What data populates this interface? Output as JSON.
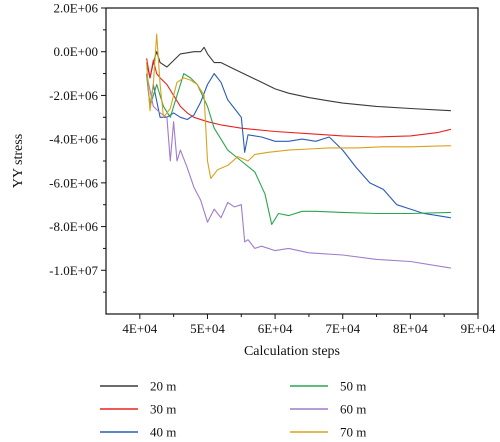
{
  "chart_data": {
    "type": "line",
    "xlabel": "Calculation steps",
    "ylabel": "YY stress",
    "xlim": [
      35000,
      90000
    ],
    "ylim": [
      -12000000,
      2000000
    ],
    "x_ticks": [
      40000,
      50000,
      60000,
      70000,
      80000,
      90000
    ],
    "x_tick_labels": [
      "4E+04",
      "5E+04",
      "6E+04",
      "7E+04",
      "8E+04",
      "9E+04"
    ],
    "y_ticks": [
      2000000,
      0,
      -2000000,
      -4000000,
      -6000000,
      -8000000,
      -10000000
    ],
    "y_tick_labels": [
      "2.0E+06",
      "0.0E+00",
      "-2.0E+06",
      "-4.0E+06",
      "-6.0E+06",
      "-8.0E+06",
      "-1.0E+07"
    ],
    "grid": false,
    "legend_position": "bottom",
    "series": [
      {
        "name": "20 m",
        "color": "#3a3a3a",
        "points": [
          [
            41000,
            -500000
          ],
          [
            41500,
            -1200000
          ],
          [
            42000,
            -500000
          ],
          [
            42500,
            0
          ],
          [
            43000,
            -500000
          ],
          [
            44000,
            -700000
          ],
          [
            45000,
            -400000
          ],
          [
            46000,
            -100000
          ],
          [
            47000,
            -50000
          ],
          [
            48000,
            0
          ],
          [
            49000,
            0
          ],
          [
            49500,
            200000
          ],
          [
            50000,
            -100000
          ],
          [
            51000,
            -500000
          ],
          [
            52000,
            -500000
          ],
          [
            54000,
            -800000
          ],
          [
            56000,
            -1100000
          ],
          [
            58000,
            -1400000
          ],
          [
            60000,
            -1700000
          ],
          [
            62000,
            -1900000
          ],
          [
            65000,
            -2100000
          ],
          [
            68000,
            -2250000
          ],
          [
            70000,
            -2350000
          ],
          [
            75000,
            -2500000
          ],
          [
            80000,
            -2600000
          ],
          [
            86000,
            -2700000
          ]
        ]
      },
      {
        "name": "30 m",
        "color": "#e8231f",
        "points": [
          [
            41000,
            -300000
          ],
          [
            41500,
            -1200000
          ],
          [
            42000,
            -400000
          ],
          [
            42500,
            -1000000
          ],
          [
            43000,
            -1200000
          ],
          [
            44000,
            -1500000
          ],
          [
            45000,
            -2000000
          ],
          [
            46000,
            -2500000
          ],
          [
            47000,
            -2800000
          ],
          [
            48000,
            -3000000
          ],
          [
            50000,
            -3200000
          ],
          [
            52000,
            -3350000
          ],
          [
            55000,
            -3500000
          ],
          [
            60000,
            -3650000
          ],
          [
            65000,
            -3750000
          ],
          [
            70000,
            -3850000
          ],
          [
            75000,
            -3900000
          ],
          [
            80000,
            -3850000
          ],
          [
            84000,
            -3700000
          ],
          [
            86000,
            -3550000
          ]
        ]
      },
      {
        "name": "40 m",
        "color": "#2a5cb8",
        "points": [
          [
            41000,
            -1000000
          ],
          [
            41500,
            -2500000
          ],
          [
            42000,
            -1500000
          ],
          [
            43000,
            -3000000
          ],
          [
            44000,
            -3000000
          ],
          [
            45000,
            -2800000
          ],
          [
            46000,
            -3000000
          ],
          [
            47000,
            -3100000
          ],
          [
            48000,
            -2900000
          ],
          [
            49000,
            -2300000
          ],
          [
            50000,
            -1500000
          ],
          [
            51000,
            -1000000
          ],
          [
            52000,
            -1400000
          ],
          [
            53000,
            -2200000
          ],
          [
            54000,
            -2600000
          ],
          [
            55000,
            -3000000
          ],
          [
            55500,
            -4600000
          ],
          [
            56000,
            -3800000
          ],
          [
            58000,
            -3900000
          ],
          [
            60000,
            -4100000
          ],
          [
            62000,
            -4100000
          ],
          [
            64000,
            -4000000
          ],
          [
            66000,
            -4100000
          ],
          [
            68000,
            -3900000
          ],
          [
            70000,
            -4500000
          ],
          [
            72000,
            -5300000
          ],
          [
            74000,
            -6000000
          ],
          [
            76000,
            -6300000
          ],
          [
            78000,
            -7000000
          ],
          [
            80000,
            -7200000
          ],
          [
            82000,
            -7400000
          ],
          [
            84000,
            -7500000
          ],
          [
            86000,
            -7600000
          ]
        ]
      },
      {
        "name": "50 m",
        "color": "#2aa54f",
        "points": [
          [
            41000,
            -1000000
          ],
          [
            41500,
            -2500000
          ],
          [
            42500,
            -1500000
          ],
          [
            43500,
            -2500000
          ],
          [
            44500,
            -3000000
          ],
          [
            45500,
            -2000000
          ],
          [
            46500,
            -1000000
          ],
          [
            47500,
            -1200000
          ],
          [
            48500,
            -1500000
          ],
          [
            50000,
            -2500000
          ],
          [
            51000,
            -3500000
          ],
          [
            52000,
            -4000000
          ],
          [
            53000,
            -4500000
          ],
          [
            55000,
            -5000000
          ],
          [
            57000,
            -5500000
          ],
          [
            58500,
            -6500000
          ],
          [
            59500,
            -7900000
          ],
          [
            60500,
            -7400000
          ],
          [
            62000,
            -7500000
          ],
          [
            64000,
            -7300000
          ],
          [
            66000,
            -7300000
          ],
          [
            70000,
            -7350000
          ],
          [
            75000,
            -7400000
          ],
          [
            80000,
            -7400000
          ],
          [
            86000,
            -7350000
          ]
        ]
      },
      {
        "name": "60 m",
        "color": "#a07ccc",
        "points": [
          [
            41000,
            -1000000
          ],
          [
            42000,
            -2500000
          ],
          [
            43000,
            -2800000
          ],
          [
            44000,
            -3000000
          ],
          [
            44500,
            -5000000
          ],
          [
            45000,
            -3200000
          ],
          [
            45500,
            -5000000
          ],
          [
            46000,
            -4500000
          ],
          [
            47000,
            -5300000
          ],
          [
            48000,
            -6200000
          ],
          [
            49000,
            -6800000
          ],
          [
            50000,
            -7800000
          ],
          [
            51000,
            -7200000
          ],
          [
            52000,
            -7600000
          ],
          [
            53000,
            -6900000
          ],
          [
            54000,
            -7100000
          ],
          [
            55000,
            -7000000
          ],
          [
            55500,
            -8700000
          ],
          [
            56000,
            -8600000
          ],
          [
            57000,
            -9000000
          ],
          [
            58000,
            -8900000
          ],
          [
            60000,
            -9100000
          ],
          [
            62000,
            -9000000
          ],
          [
            65000,
            -9200000
          ],
          [
            70000,
            -9300000
          ],
          [
            75000,
            -9500000
          ],
          [
            80000,
            -9600000
          ],
          [
            86000,
            -9900000
          ]
        ]
      },
      {
        "name": "70 m",
        "color": "#d9a21c",
        "points": [
          [
            41000,
            -500000
          ],
          [
            41500,
            -2700000
          ],
          [
            42000,
            -1500000
          ],
          [
            42500,
            800000
          ],
          [
            43000,
            -1500000
          ],
          [
            43500,
            -3000000
          ],
          [
            44500,
            -2600000
          ],
          [
            45500,
            -1400000
          ],
          [
            46500,
            -1200000
          ],
          [
            47500,
            -1300000
          ],
          [
            48500,
            -1500000
          ],
          [
            49500,
            -2000000
          ],
          [
            50000,
            -5000000
          ],
          [
            50500,
            -5800000
          ],
          [
            51500,
            -5400000
          ],
          [
            53000,
            -5200000
          ],
          [
            54500,
            -4800000
          ],
          [
            56000,
            -5000000
          ],
          [
            57000,
            -4700000
          ],
          [
            59000,
            -4600000
          ],
          [
            62000,
            -4500000
          ],
          [
            65000,
            -4450000
          ],
          [
            68000,
            -4400000
          ],
          [
            72000,
            -4400000
          ],
          [
            76000,
            -4350000
          ],
          [
            80000,
            -4350000
          ],
          [
            86000,
            -4300000
          ]
        ]
      }
    ]
  }
}
